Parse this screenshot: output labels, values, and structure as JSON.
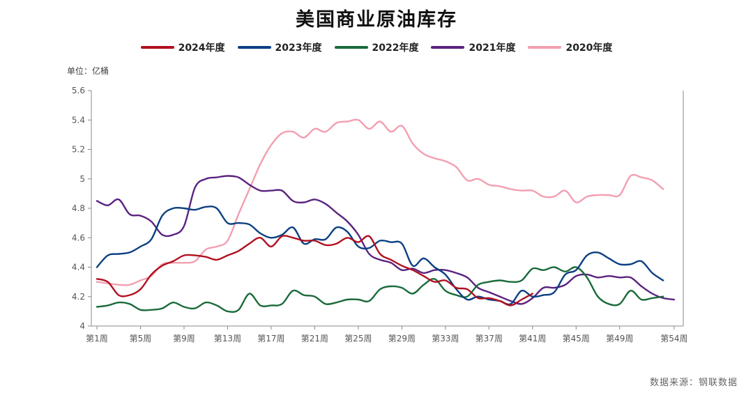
{
  "chart_data": {
    "type": "line",
    "title": "美国商业原油库存",
    "unit_label": "单位：亿桶",
    "source": "数据来源：钢联数据",
    "ylim": [
      4.0,
      5.6
    ],
    "yticks": [
      "4",
      "4.2",
      "4.4",
      "4.6",
      "4.8",
      "5",
      "5.2",
      "5.4",
      "5.6"
    ],
    "xlim": [
      1,
      54
    ],
    "xticks": [
      {
        "week": 1,
        "label": "第1周"
      },
      {
        "week": 5,
        "label": "第5周"
      },
      {
        "week": 9,
        "label": "第9周"
      },
      {
        "week": 13,
        "label": "第13周"
      },
      {
        "week": 17,
        "label": "第17周"
      },
      {
        "week": 21,
        "label": "第21周"
      },
      {
        "week": 25,
        "label": "第25周"
      },
      {
        "week": 29,
        "label": "第29周"
      },
      {
        "week": 33,
        "label": "第33周"
      },
      {
        "week": 37,
        "label": "第37周"
      },
      {
        "week": 41,
        "label": "第41周"
      },
      {
        "week": 45,
        "label": "第45周"
      },
      {
        "week": 49,
        "label": "第49周"
      },
      {
        "week": 54,
        "label": "第54周"
      }
    ],
    "series": [
      {
        "name": "2020年度",
        "color": "#f29fb0",
        "values": [
          4.3,
          4.29,
          4.28,
          4.28,
          4.31,
          4.34,
          4.42,
          4.43,
          4.43,
          4.44,
          4.52,
          4.54,
          4.58,
          4.76,
          4.93,
          5.1,
          5.23,
          5.31,
          5.32,
          5.28,
          5.34,
          5.32,
          5.38,
          5.39,
          5.4,
          5.34,
          5.39,
          5.32,
          5.36,
          5.24,
          5.17,
          5.14,
          5.12,
          5.08,
          4.99,
          5.0,
          4.96,
          4.95,
          4.93,
          4.92,
          4.92,
          4.88,
          4.88,
          4.92,
          4.84,
          4.88,
          4.89,
          4.89,
          4.89,
          5.02,
          5.01,
          4.99,
          4.93
        ]
      },
      {
        "name": "2021年度",
        "color": "#5a2280",
        "values": [
          4.85,
          4.82,
          4.86,
          4.76,
          4.75,
          4.71,
          4.62,
          4.62,
          4.68,
          4.94,
          5.0,
          5.01,
          5.02,
          5.01,
          4.96,
          4.92,
          4.92,
          4.92,
          4.85,
          4.84,
          4.86,
          4.83,
          4.77,
          4.71,
          4.62,
          4.49,
          4.45,
          4.43,
          4.38,
          4.39,
          4.36,
          4.38,
          4.38,
          4.36,
          4.33,
          4.26,
          4.23,
          4.2,
          4.17,
          4.15,
          4.19,
          4.26,
          4.26,
          4.28,
          4.34,
          4.35,
          4.33,
          4.34,
          4.33,
          4.33,
          4.27,
          4.22,
          4.19,
          4.18
        ]
      },
      {
        "name": "2022年度",
        "color": "#1a6a3a",
        "values": [
          4.13,
          4.14,
          4.16,
          4.15,
          4.11,
          4.11,
          4.12,
          4.16,
          4.13,
          4.12,
          4.16,
          4.14,
          4.1,
          4.11,
          4.22,
          4.14,
          4.14,
          4.15,
          4.24,
          4.21,
          4.2,
          4.15,
          4.16,
          4.18,
          4.18,
          4.17,
          4.25,
          4.27,
          4.26,
          4.22,
          4.28,
          4.32,
          4.24,
          4.21,
          4.2,
          4.28,
          4.3,
          4.31,
          4.3,
          4.31,
          4.39,
          4.38,
          4.4,
          4.37,
          4.4,
          4.33,
          4.2,
          4.15,
          4.15,
          4.24,
          4.18,
          4.19,
          4.2
        ]
      },
      {
        "name": "2023年度",
        "color": "#0b3f82",
        "values": [
          4.4,
          4.48,
          4.49,
          4.5,
          4.54,
          4.59,
          4.75,
          4.8,
          4.8,
          4.79,
          4.81,
          4.8,
          4.7,
          4.7,
          4.69,
          4.63,
          4.6,
          4.62,
          4.67,
          4.56,
          4.59,
          4.59,
          4.67,
          4.64,
          4.54,
          4.53,
          4.58,
          4.57,
          4.56,
          4.41,
          4.46,
          4.4,
          4.35,
          4.25,
          4.18,
          4.2,
          4.18,
          4.17,
          4.15,
          4.24,
          4.2,
          4.21,
          4.23,
          4.35,
          4.38,
          4.48,
          4.5,
          4.46,
          4.42,
          4.42,
          4.44,
          4.36,
          4.31
        ]
      },
      {
        "name": "2024年度",
        "color": "#b01020",
        "values": [
          4.32,
          4.3,
          4.21,
          4.21,
          4.25,
          4.35,
          4.41,
          4.44,
          4.48,
          4.48,
          4.47,
          4.45,
          4.48,
          4.51,
          4.56,
          4.6,
          4.54,
          4.61,
          4.6,
          4.58,
          4.58,
          4.55,
          4.56,
          4.6,
          4.57,
          4.61,
          4.49,
          4.45,
          4.41,
          4.38,
          4.34,
          4.3,
          4.31,
          4.26,
          4.25,
          4.19,
          4.19,
          4.17,
          4.14,
          4.18,
          4.22
        ]
      }
    ],
    "legend_order": [
      "2024年度",
      "2023年度",
      "2022年度",
      "2021年度",
      "2020年度"
    ]
  }
}
